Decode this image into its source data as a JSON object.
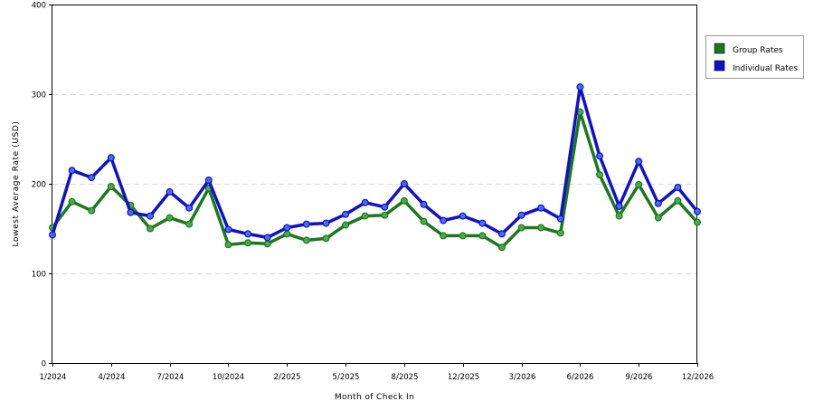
{
  "chart_data": {
    "type": "line",
    "title": "",
    "xlabel": "Month of Check In",
    "ylabel": "Lowest Average Rate (USD)",
    "ylim": [
      0,
      400
    ],
    "yticks": [
      0,
      100,
      200,
      300,
      400
    ],
    "grid": true,
    "legend_position": "right",
    "x_tick_labels": [
      {
        "index": 0,
        "label": "1/2024"
      },
      {
        "index": 3,
        "label": "4/2024"
      },
      {
        "index": 6,
        "label": "7/2024"
      },
      {
        "index": 9,
        "label": "10/2024"
      },
      {
        "index": 12,
        "label": "2/2025"
      },
      {
        "index": 15,
        "label": "5/2025"
      },
      {
        "index": 18,
        "label": "8/2025"
      },
      {
        "index": 21,
        "label": "12/2025"
      },
      {
        "index": 24,
        "label": "3/2026"
      },
      {
        "index": 27,
        "label": "6/2026"
      },
      {
        "index": 30,
        "label": "9/2026"
      },
      {
        "index": 33,
        "label": "12/2026"
      }
    ],
    "series": [
      {
        "name": "Group Rates",
        "color": "#1a7a1a",
        "values": [
          151,
          180,
          170,
          197,
          176,
          150,
          162,
          155,
          195,
          132,
          134,
          133,
          144,
          137,
          139,
          154,
          164,
          165,
          181,
          158,
          142,
          142,
          142,
          129,
          151,
          151,
          145,
          280,
          210,
          164,
          199,
          162,
          181,
          157
        ]
      },
      {
        "name": "Individual Rates",
        "color": "#1010cc",
        "values": [
          143,
          215,
          207,
          229,
          168,
          164,
          191,
          173,
          204,
          149,
          144,
          140,
          151,
          155,
          156,
          166,
          179,
          174,
          200,
          177,
          159,
          164,
          156,
          144,
          165,
          173,
          161,
          308,
          231,
          175,
          225,
          178,
          196,
          169
        ]
      }
    ]
  }
}
